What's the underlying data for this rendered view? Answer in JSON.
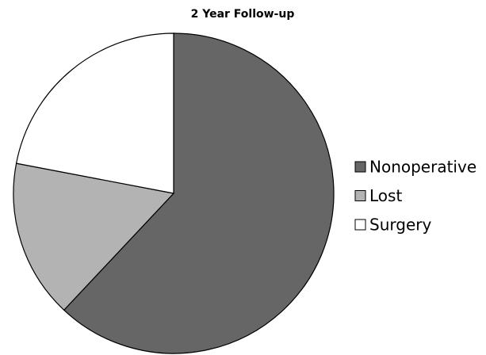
{
  "chart_data": {
    "type": "pie",
    "title": "2 Year Follow-up",
    "categories": [
      "Nonoperative",
      "Lost",
      "Surgery"
    ],
    "values": [
      62,
      16,
      22
    ],
    "colors": [
      "#666666",
      "#b3b3b3",
      "#ffffff"
    ],
    "legend": "right"
  }
}
